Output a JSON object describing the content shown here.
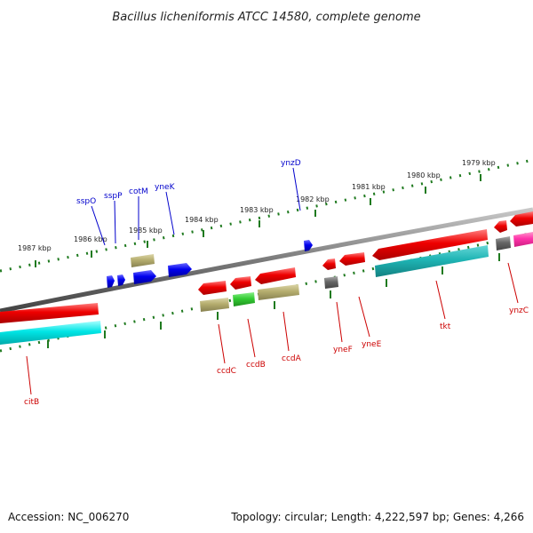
{
  "title": "Bacillus licheniformis ATCC 14580, complete genome",
  "footer": {
    "accession": "Accession: NC_006270",
    "summary": "Topology: circular; Length: 4,222,597 bp; Genes: 4,266"
  },
  "scale_labels": [
    "1987 kbp",
    "1986 kbp",
    "1985 kbp",
    "1984 kbp",
    "1983 kbp",
    "1982 kbp",
    "1981 kbp",
    "1980 kbp",
    "1979 kbp"
  ],
  "gene_labels_forward": [
    "sspO",
    "sspP",
    "cotM",
    "yneK",
    "ynzD"
  ],
  "gene_labels_reverse": [
    "citB",
    "ccdC",
    "ccdB",
    "ccdA",
    "yneF",
    "yneE",
    "tkt",
    "ynzC"
  ],
  "colors": {
    "backbone": "#808080",
    "forward_cds": "#0000ee",
    "reverse_cds": "#ee0000",
    "rna_cyan": "#00e5e5",
    "olive": "#b5ad6e",
    "green": "#33cc33",
    "gray": "#666666",
    "magenta": "#ff33aa",
    "tick": "#1f7a1f"
  }
}
